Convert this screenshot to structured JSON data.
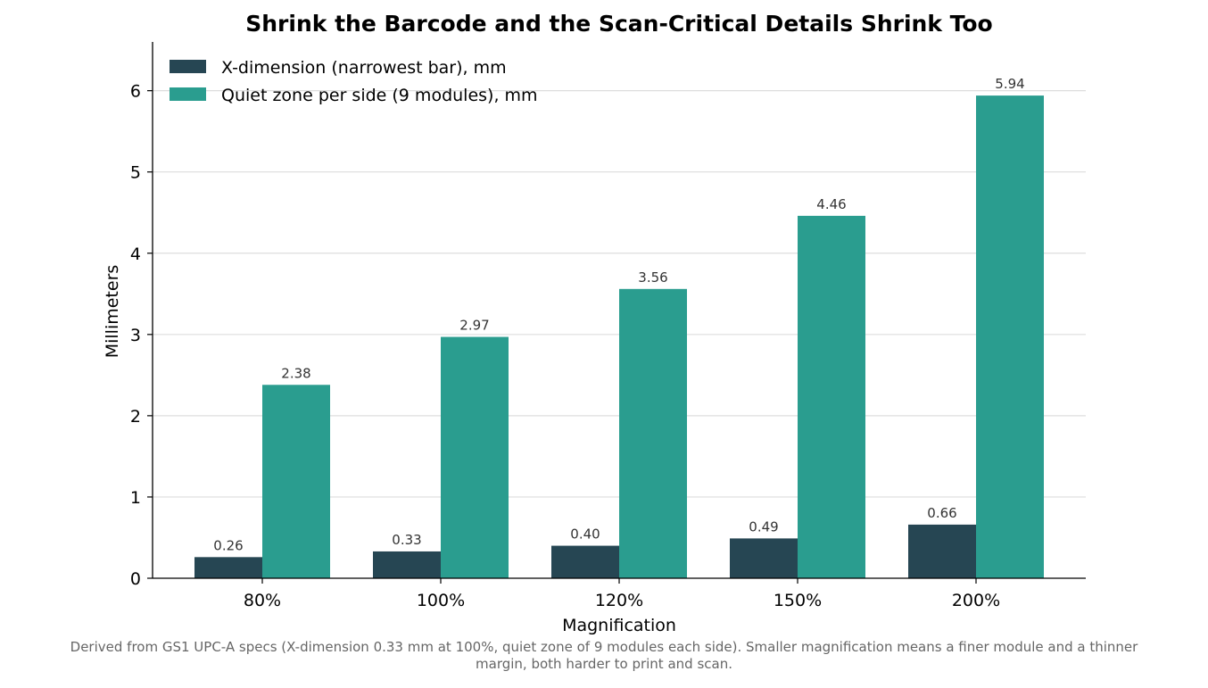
{
  "chart_data": {
    "type": "bar",
    "title": "Shrink the Barcode and the Scan-Critical Details Shrink Too",
    "xlabel": "Magnification",
    "ylabel": "Millimeters",
    "categories": [
      "80%",
      "100%",
      "120%",
      "150%",
      "200%"
    ],
    "series": [
      {
        "name": "X-dimension (narrowest bar), mm",
        "values": [
          0.26,
          0.33,
          0.4,
          0.49,
          0.66
        ],
        "labels": [
          "0.26",
          "0.33",
          "0.40",
          "0.49",
          "0.66"
        ],
        "color": "#264653"
      },
      {
        "name": "Quiet zone per side (9 modules), mm",
        "values": [
          2.38,
          2.97,
          3.56,
          4.46,
          5.94
        ],
        "labels": [
          "2.38",
          "2.97",
          "3.56",
          "4.46",
          "5.94"
        ],
        "color": "#2a9d8f"
      }
    ],
    "ylim": [
      0,
      6.6
    ],
    "yticks": [
      0,
      1,
      2,
      3,
      4,
      5,
      6
    ],
    "ytick_labels": [
      "0",
      "1",
      "2",
      "3",
      "4",
      "5",
      "6"
    ],
    "grid": "horizontal",
    "legend_position": "top-left",
    "footnote_lines": [
      "Derived from GS1 UPC-A specs (X-dimension 0.33 mm at 100%, quiet zone of 9 modules each side). Smaller magnification means a finer module and a thinner",
      "margin, both harder to print and scan."
    ]
  }
}
